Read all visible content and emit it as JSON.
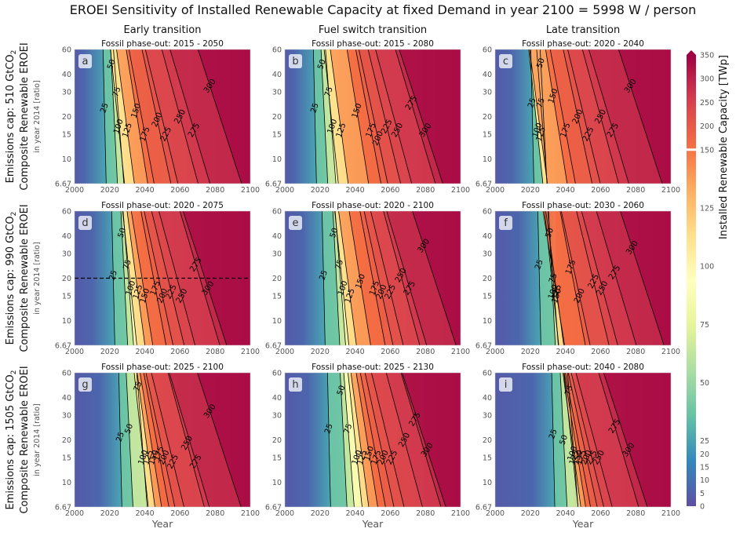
{
  "figure": {
    "title": "EROEI Sensitivity of Installed Renewable Capacity at fixed Demand in year 2100 = 5998 W / person"
  },
  "columns": [
    "Early transition",
    "Fuel switch transition",
    "Late transition"
  ],
  "rows": [
    {
      "label": "Emissions cap: 510 GtCO",
      "sub": "2",
      "ylabel": "Composite Renewable EROEI",
      "ysublabel": "in year 2014 [ratio]"
    },
    {
      "label": "Emissions cap: 990 GtCO",
      "sub": "2",
      "ylabel": "Composite Renewable EROEI",
      "ysublabel": "in year 2014 [ratio]"
    },
    {
      "label": "Emissions cap: 1505 GtCO",
      "sub": "2",
      "ylabel": "Composite Renewable EROEI",
      "ysublabel": "in year 2014 [ratio]"
    }
  ],
  "colorbar": {
    "label": "Installed Renewable Capacity [TWp]",
    "ticks": [
      "0",
      "5",
      "10",
      "15",
      "20",
      "25",
      "50",
      "75",
      "100",
      "125",
      "150",
      "200",
      "250",
      "300",
      "350"
    ]
  },
  "chart_data": {
    "type": "contour",
    "xlabel": "Year",
    "x_ticks": [
      "2000",
      "2020",
      "2040",
      "2060",
      "2080",
      "2100"
    ],
    "xlim": [
      2000,
      2100
    ],
    "y_ticks": [
      "6.67",
      "10",
      "15",
      "20",
      "30",
      "40",
      "60"
    ],
    "ylim": [
      6.67,
      60
    ],
    "yscale": "log",
    "contour_levels": [
      25,
      50,
      75,
      100,
      125,
      150,
      175,
      200,
      225,
      250,
      275,
      300
    ],
    "panels": [
      {
        "letter": "a",
        "subtitle": "Fossil phase-out: 2015 - 2050",
        "ref_line": null,
        "labels": [
          {
            "v": 25,
            "x": 2017,
            "y": 23
          },
          {
            "v": 50,
            "x": 2021,
            "y": 47
          },
          {
            "v": 75,
            "x": 2024,
            "y": 30
          },
          {
            "v": 100,
            "x": 2025,
            "y": 17
          },
          {
            "v": 125,
            "x": 2030,
            "y": 16
          },
          {
            "v": 150,
            "x": 2035,
            "y": 22
          },
          {
            "v": 175,
            "x": 2040,
            "y": 15
          },
          {
            "v": 200,
            "x": 2047,
            "y": 19
          },
          {
            "v": 225,
            "x": 2052,
            "y": 15
          },
          {
            "v": 250,
            "x": 2060,
            "y": 20
          },
          {
            "v": 275,
            "x": 2068,
            "y": 16
          },
          {
            "v": 300,
            "x": 2077,
            "y": 33
          }
        ]
      },
      {
        "letter": "b",
        "subtitle": "Fossil phase-out: 2015 - 2080",
        "ref_line": null,
        "labels": [
          {
            "v": 25,
            "x": 2017,
            "y": 23
          },
          {
            "v": 50,
            "x": 2021,
            "y": 47
          },
          {
            "v": 75,
            "x": 2025,
            "y": 30
          },
          {
            "v": 100,
            "x": 2027,
            "y": 17
          },
          {
            "v": 125,
            "x": 2032,
            "y": 16
          },
          {
            "v": 150,
            "x": 2041,
            "y": 22
          },
          {
            "v": 175,
            "x": 2049,
            "y": 16
          },
          {
            "v": 200,
            "x": 2053,
            "y": 14
          },
          {
            "v": 225,
            "x": 2058,
            "y": 17
          },
          {
            "v": 250,
            "x": 2064,
            "y": 16
          },
          {
            "v": 275,
            "x": 2072,
            "y": 25
          },
          {
            "v": 300,
            "x": 2080,
            "y": 16
          }
        ]
      },
      {
        "letter": "c",
        "subtitle": "Fossil phase-out: 2020 - 2040",
        "ref_line": null,
        "labels": [
          {
            "v": 25,
            "x": 2021,
            "y": 25
          },
          {
            "v": 50,
            "x": 2026,
            "y": 48
          },
          {
            "v": 75,
            "x": 2026,
            "y": 25
          },
          {
            "v": 100,
            "x": 2024,
            "y": 16
          },
          {
            "v": 125,
            "x": 2026,
            "y": 15
          },
          {
            "v": 150,
            "x": 2033,
            "y": 28
          },
          {
            "v": 175,
            "x": 2040,
            "y": 16
          },
          {
            "v": 200,
            "x": 2047,
            "y": 20
          },
          {
            "v": 225,
            "x": 2053,
            "y": 15
          },
          {
            "v": 250,
            "x": 2060,
            "y": 20
          },
          {
            "v": 275,
            "x": 2067,
            "y": 16
          },
          {
            "v": 300,
            "x": 2077,
            "y": 33
          }
        ]
      },
      {
        "letter": "d",
        "subtitle": "Fossil phase-out: 2020 - 2075",
        "ref_line": 20,
        "labels": [
          {
            "v": 25,
            "x": 2022,
            "y": 21
          },
          {
            "v": 50,
            "x": 2027,
            "y": 42
          },
          {
            "v": 75,
            "x": 2030,
            "y": 25
          },
          {
            "v": 100,
            "x": 2032,
            "y": 17
          },
          {
            "v": 125,
            "x": 2036,
            "y": 16
          },
          {
            "v": 150,
            "x": 2040,
            "y": 15
          },
          {
            "v": 175,
            "x": 2046,
            "y": 17
          },
          {
            "v": 200,
            "x": 2050,
            "y": 15
          },
          {
            "v": 225,
            "x": 2055,
            "y": 16
          },
          {
            "v": 250,
            "x": 2061,
            "y": 15
          },
          {
            "v": 275,
            "x": 2069,
            "y": 25
          },
          {
            "v": 300,
            "x": 2076,
            "y": 17
          }
        ]
      },
      {
        "letter": "e",
        "subtitle": "Fossil phase-out: 2020 - 2100",
        "ref_line": null,
        "labels": [
          {
            "v": 25,
            "x": 2022,
            "y": 21
          },
          {
            "v": 50,
            "x": 2028,
            "y": 42
          },
          {
            "v": 75,
            "x": 2031,
            "y": 25
          },
          {
            "v": 100,
            "x": 2033,
            "y": 17
          },
          {
            "v": 125,
            "x": 2037,
            "y": 15
          },
          {
            "v": 150,
            "x": 2043,
            "y": 19
          },
          {
            "v": 175,
            "x": 2051,
            "y": 17
          },
          {
            "v": 200,
            "x": 2055,
            "y": 16
          },
          {
            "v": 225,
            "x": 2060,
            "y": 16
          },
          {
            "v": 250,
            "x": 2066,
            "y": 21
          },
          {
            "v": 275,
            "x": 2071,
            "y": 17
          },
          {
            "v": 300,
            "x": 2079,
            "y": 34
          }
        ]
      },
      {
        "letter": "f",
        "subtitle": "Fossil phase-out: 2030 - 2060",
        "ref_line": null,
        "labels": [
          {
            "v": 25,
            "x": 2025,
            "y": 25
          },
          {
            "v": 50,
            "x": 2031,
            "y": 42
          },
          {
            "v": 75,
            "x": 2033,
            "y": 20
          },
          {
            "v": 100,
            "x": 2033,
            "y": 16
          },
          {
            "v": 125,
            "x": 2035,
            "y": 16
          },
          {
            "v": 150,
            "x": 2035,
            "y": 15
          },
          {
            "v": 175,
            "x": 2043,
            "y": 24
          },
          {
            "v": 200,
            "x": 2048,
            "y": 15
          },
          {
            "v": 225,
            "x": 2056,
            "y": 19
          },
          {
            "v": 250,
            "x": 2061,
            "y": 17
          },
          {
            "v": 275,
            "x": 2068,
            "y": 22
          },
          {
            "v": 300,
            "x": 2078,
            "y": 33
          }
        ]
      },
      {
        "letter": "g",
        "subtitle": "Fossil phase-out: 2025 - 2100",
        "ref_line": null,
        "labels": [
          {
            "v": 25,
            "x": 2026,
            "y": 21
          },
          {
            "v": 50,
            "x": 2031,
            "y": 24
          },
          {
            "v": 75,
            "x": 2036,
            "y": 48
          },
          {
            "v": 100,
            "x": 2039,
            "y": 15
          },
          {
            "v": 125,
            "x": 2042,
            "y": 15
          },
          {
            "v": 150,
            "x": 2045,
            "y": 15
          },
          {
            "v": 175,
            "x": 2048,
            "y": 16
          },
          {
            "v": 200,
            "x": 2051,
            "y": 15
          },
          {
            "v": 225,
            "x": 2056,
            "y": 14
          },
          {
            "v": 250,
            "x": 2064,
            "y": 19
          },
          {
            "v": 275,
            "x": 2069,
            "y": 14
          },
          {
            "v": 300,
            "x": 2077,
            "y": 32
          }
        ]
      },
      {
        "letter": "h",
        "subtitle": "Fossil phase-out: 2025 - 2130",
        "ref_line": null,
        "labels": [
          {
            "v": 25,
            "x": 2025,
            "y": 24
          },
          {
            "v": 50,
            "x": 2032,
            "y": 45
          },
          {
            "v": 75,
            "x": 2036,
            "y": 24
          },
          {
            "v": 100,
            "x": 2041,
            "y": 15
          },
          {
            "v": 125,
            "x": 2044,
            "y": 15
          },
          {
            "v": 150,
            "x": 2048,
            "y": 16
          },
          {
            "v": 175,
            "x": 2052,
            "y": 15
          },
          {
            "v": 200,
            "x": 2056,
            "y": 15
          },
          {
            "v": 225,
            "x": 2061,
            "y": 15
          },
          {
            "v": 250,
            "x": 2068,
            "y": 20
          },
          {
            "v": 275,
            "x": 2074,
            "y": 28
          },
          {
            "v": 300,
            "x": 2081,
            "y": 17
          }
        ]
      },
      {
        "letter": "i",
        "subtitle": "Fossil phase-out: 2040 - 2080",
        "ref_line": null,
        "labels": [
          {
            "v": 25,
            "x": 2033,
            "y": 22
          },
          {
            "v": 50,
            "x": 2039,
            "y": 20
          },
          {
            "v": 75,
            "x": 2042,
            "y": 45
          },
          {
            "v": 100,
            "x": 2044,
            "y": 16
          },
          {
            "v": 125,
            "x": 2045,
            "y": 15
          },
          {
            "v": 150,
            "x": 2047,
            "y": 15
          },
          {
            "v": 175,
            "x": 2049,
            "y": 15
          },
          {
            "v": 200,
            "x": 2052,
            "y": 15
          },
          {
            "v": 225,
            "x": 2055,
            "y": 15
          },
          {
            "v": 250,
            "x": 2059,
            "y": 15
          },
          {
            "v": 275,
            "x": 2068,
            "y": 25
          },
          {
            "v": 300,
            "x": 2076,
            "y": 17
          }
        ]
      }
    ]
  }
}
